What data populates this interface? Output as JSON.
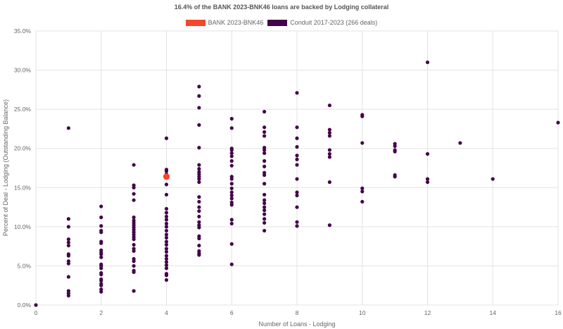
{
  "chart_data": {
    "type": "scatter",
    "title": "16.4% of the BANK 2023-BNK46 loans are backed by Lodging collateral",
    "xlabel": "Number of Loans - Lodging",
    "ylabel": "Percent of Deal - Lodging (Outstanding Balance)",
    "xlim": [
      0,
      16
    ],
    "ylim": [
      0,
      35
    ],
    "x_ticks": [
      "0",
      "2",
      "4",
      "6",
      "8",
      "10",
      "12",
      "14",
      "16"
    ],
    "y_ticks": [
      "0.0%",
      "5.0%",
      "10.0%",
      "15.0%",
      "20.0%",
      "25.0%",
      "30.0%",
      "35.0%"
    ],
    "grid": true,
    "legend_position": "top-center",
    "series": [
      {
        "name": "BANK 2023-BNK46",
        "color": "#f4472c",
        "points": [
          [
            4,
            16.4
          ]
        ]
      },
      {
        "name": "Conduit 2017-2023 (266 deals)",
        "color": "#44044a",
        "points": [
          [
            0,
            0.0
          ],
          [
            1,
            22.6
          ],
          [
            1,
            11.0
          ],
          [
            1,
            10.0
          ],
          [
            1,
            8.4
          ],
          [
            1,
            8.0
          ],
          [
            1,
            7.6
          ],
          [
            1,
            6.5
          ],
          [
            1,
            6.3
          ],
          [
            1,
            5.6
          ],
          [
            1,
            5.3
          ],
          [
            1,
            3.6
          ],
          [
            1,
            1.8
          ],
          [
            1,
            1.5
          ],
          [
            1,
            1.2
          ],
          [
            2,
            12.6
          ],
          [
            2,
            11.2
          ],
          [
            2,
            10.1
          ],
          [
            2,
            9.5
          ],
          [
            2,
            9.3
          ],
          [
            2,
            8.1
          ],
          [
            2,
            7.9
          ],
          [
            2,
            7.0
          ],
          [
            2,
            6.7
          ],
          [
            2,
            6.5
          ],
          [
            2,
            6.1
          ],
          [
            2,
            5.2
          ],
          [
            2,
            5.0
          ],
          [
            2,
            4.7
          ],
          [
            2,
            4.1
          ],
          [
            2,
            3.9
          ],
          [
            2,
            3.3
          ],
          [
            2,
            3.1
          ],
          [
            2,
            2.7
          ],
          [
            2,
            2.5
          ],
          [
            2,
            2.0
          ],
          [
            2,
            1.7
          ],
          [
            3,
            17.9
          ],
          [
            3,
            15.3
          ],
          [
            3,
            15.0
          ],
          [
            3,
            14.2
          ],
          [
            3,
            13.4
          ],
          [
            3,
            11.2
          ],
          [
            3,
            10.8
          ],
          [
            3,
            10.5
          ],
          [
            3,
            10.2
          ],
          [
            3,
            9.9
          ],
          [
            3,
            9.6
          ],
          [
            3,
            9.3
          ],
          [
            3,
            9.0
          ],
          [
            3,
            8.7
          ],
          [
            3,
            8.4
          ],
          [
            3,
            7.7
          ],
          [
            3,
            7.2
          ],
          [
            3,
            6.9
          ],
          [
            3,
            5.9
          ],
          [
            3,
            5.6
          ],
          [
            3,
            5.0
          ],
          [
            3,
            4.4
          ],
          [
            3,
            4.2
          ],
          [
            3,
            1.8
          ],
          [
            4,
            21.3
          ],
          [
            4,
            17.3
          ],
          [
            4,
            17.1
          ],
          [
            4,
            16.7
          ],
          [
            4,
            15.4
          ],
          [
            4,
            14.1
          ],
          [
            4,
            12.3
          ],
          [
            4,
            11.8
          ],
          [
            4,
            11.3
          ],
          [
            4,
            10.9
          ],
          [
            4,
            10.4
          ],
          [
            4,
            10.0
          ],
          [
            4,
            9.5
          ],
          [
            4,
            9.0
          ],
          [
            4,
            8.6
          ],
          [
            4,
            8.1
          ],
          [
            4,
            7.7
          ],
          [
            4,
            7.2
          ],
          [
            4,
            6.8
          ],
          [
            4,
            6.3
          ],
          [
            4,
            5.9
          ],
          [
            4,
            5.5
          ],
          [
            4,
            5.1
          ],
          [
            4,
            4.7
          ],
          [
            4,
            4.0
          ],
          [
            4,
            3.8
          ],
          [
            4,
            3.2
          ],
          [
            5,
            27.9
          ],
          [
            5,
            26.7
          ],
          [
            5,
            25.2
          ],
          [
            5,
            23.0
          ],
          [
            5,
            20.1
          ],
          [
            5,
            17.9
          ],
          [
            5,
            17.4
          ],
          [
            5,
            17.0
          ],
          [
            5,
            16.7
          ],
          [
            5,
            16.4
          ],
          [
            5,
            16.1
          ],
          [
            5,
            15.7
          ],
          [
            5,
            13.8
          ],
          [
            5,
            13.2
          ],
          [
            5,
            12.5
          ],
          [
            5,
            12.0
          ],
          [
            5,
            11.3
          ],
          [
            5,
            10.6
          ],
          [
            5,
            10.2
          ],
          [
            5,
            9.9
          ],
          [
            5,
            8.8
          ],
          [
            5,
            8.5
          ],
          [
            5,
            7.6
          ],
          [
            5,
            6.9
          ],
          [
            5,
            6.6
          ],
          [
            5,
            6.4
          ],
          [
            6,
            23.8
          ],
          [
            6,
            22.6
          ],
          [
            6,
            20.0
          ],
          [
            6,
            19.8
          ],
          [
            6,
            19.4
          ],
          [
            6,
            19.0
          ],
          [
            6,
            18.4
          ],
          [
            6,
            17.8
          ],
          [
            6,
            16.4
          ],
          [
            6,
            16.1
          ],
          [
            6,
            15.5
          ],
          [
            6,
            14.9
          ],
          [
            6,
            14.4
          ],
          [
            6,
            14.0
          ],
          [
            6,
            13.6
          ],
          [
            6,
            13.1
          ],
          [
            6,
            12.8
          ],
          [
            6,
            10.9
          ],
          [
            6,
            10.4
          ],
          [
            6,
            7.8
          ],
          [
            6,
            5.2
          ],
          [
            7,
            24.7
          ],
          [
            7,
            22.7
          ],
          [
            7,
            22.1
          ],
          [
            7,
            21.6
          ],
          [
            7,
            20.1
          ],
          [
            7,
            19.8
          ],
          [
            7,
            19.4
          ],
          [
            7,
            18.4
          ],
          [
            7,
            17.7
          ],
          [
            7,
            16.9
          ],
          [
            7,
            16.6
          ],
          [
            7,
            15.5
          ],
          [
            7,
            14.1
          ],
          [
            7,
            13.4
          ],
          [
            7,
            13.0
          ],
          [
            7,
            12.5
          ],
          [
            7,
            12.1
          ],
          [
            7,
            11.6
          ],
          [
            7,
            11.0
          ],
          [
            7,
            10.5
          ],
          [
            7,
            9.5
          ],
          [
            8,
            27.1
          ],
          [
            8,
            22.7
          ],
          [
            8,
            21.3
          ],
          [
            8,
            20.2
          ],
          [
            8,
            19.1
          ],
          [
            8,
            18.6
          ],
          [
            8,
            17.9
          ],
          [
            8,
            16.1
          ],
          [
            8,
            14.4
          ],
          [
            8,
            14.0
          ],
          [
            8,
            12.5
          ],
          [
            8,
            10.6
          ],
          [
            8,
            10.1
          ],
          [
            9,
            25.5
          ],
          [
            9,
            22.4
          ],
          [
            9,
            22.0
          ],
          [
            9,
            21.6
          ],
          [
            9,
            19.8
          ],
          [
            9,
            19.3
          ],
          [
            9,
            18.9
          ],
          [
            9,
            15.7
          ],
          [
            9,
            10.2
          ],
          [
            10,
            24.3
          ],
          [
            10,
            24.1
          ],
          [
            10,
            20.7
          ],
          [
            10,
            14.9
          ],
          [
            10,
            14.5
          ],
          [
            10,
            13.2
          ],
          [
            11,
            20.6
          ],
          [
            11,
            20.3
          ],
          [
            11,
            19.8
          ],
          [
            11,
            19.6
          ],
          [
            11,
            16.6
          ],
          [
            11,
            16.4
          ],
          [
            12,
            31.0
          ],
          [
            12,
            19.3
          ],
          [
            12,
            16.1
          ],
          [
            12,
            15.7
          ],
          [
            13,
            20.7
          ],
          [
            14,
            16.1
          ],
          [
            16,
            23.3
          ]
        ]
      }
    ]
  }
}
